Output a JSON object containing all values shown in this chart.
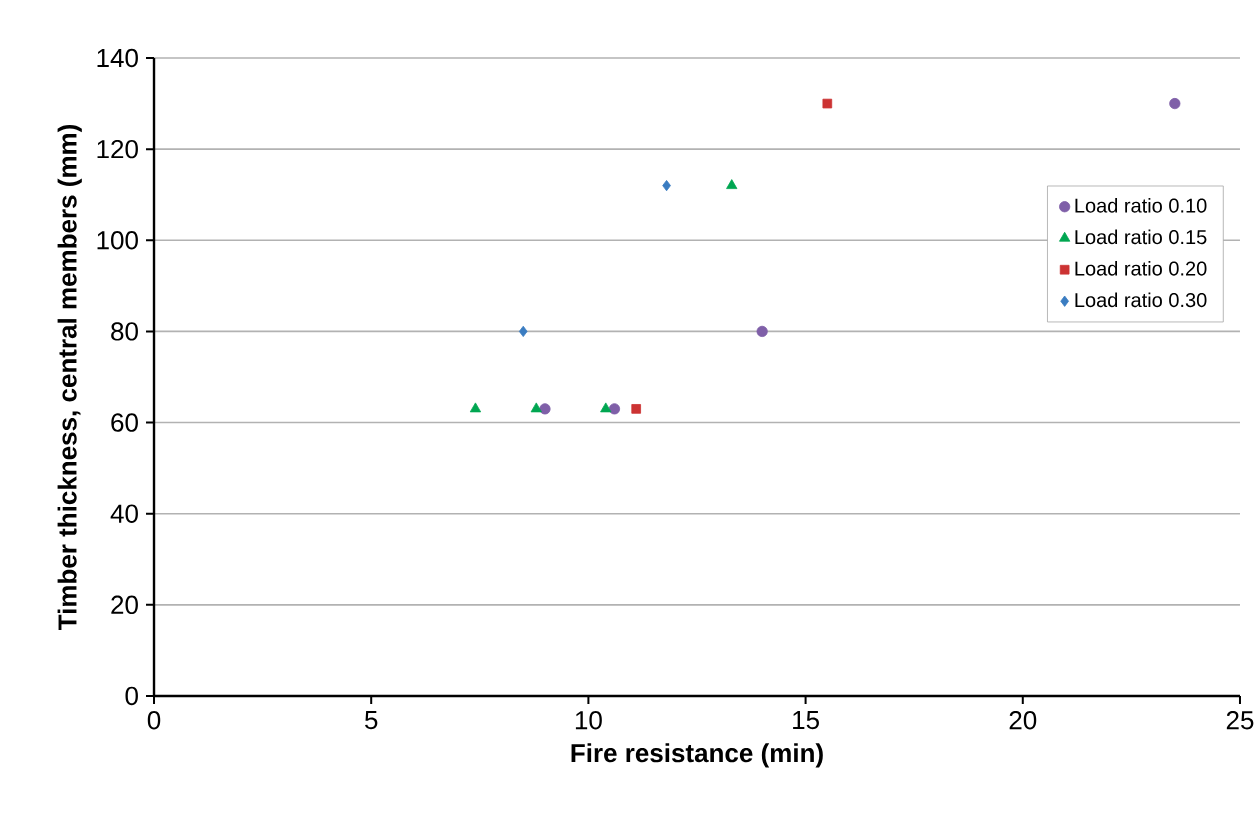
{
  "chart_data": {
    "type": "scatter",
    "xlabel": "Fire resistance (min)",
    "ylabel": "Timber thickness, central members (mm)",
    "xlim": [
      0,
      25
    ],
    "ylim": [
      0,
      140
    ],
    "xticks": [
      0,
      5,
      10,
      15,
      20,
      25
    ],
    "yticks": [
      0,
      20,
      40,
      60,
      80,
      100,
      120,
      140
    ],
    "grid": "y",
    "legend": "top right",
    "series": [
      {
        "name": "Load ratio  0.10",
        "color": "#7f5fa8",
        "marker": "circle",
        "x": [
          9.0,
          10.6,
          14.0,
          23.5
        ],
        "values": [
          63,
          63,
          80,
          130
        ]
      },
      {
        "name": "Load ratio  0.15",
        "color": "#00a651",
        "marker": "triangle",
        "x": [
          7.4,
          8.8,
          10.4,
          13.3
        ],
        "values": [
          63,
          63,
          63,
          112
        ]
      },
      {
        "name": "Load ratio  0.20",
        "color": "#cc3333",
        "marker": "square",
        "x": [
          11.1,
          15.5
        ],
        "values": [
          63,
          130
        ]
      },
      {
        "name": "Load ratio  0.30",
        "color": "#3a7cc1",
        "marker": "diamond",
        "x": [
          8.5,
          11.8
        ],
        "values": [
          80,
          112
        ]
      }
    ]
  }
}
